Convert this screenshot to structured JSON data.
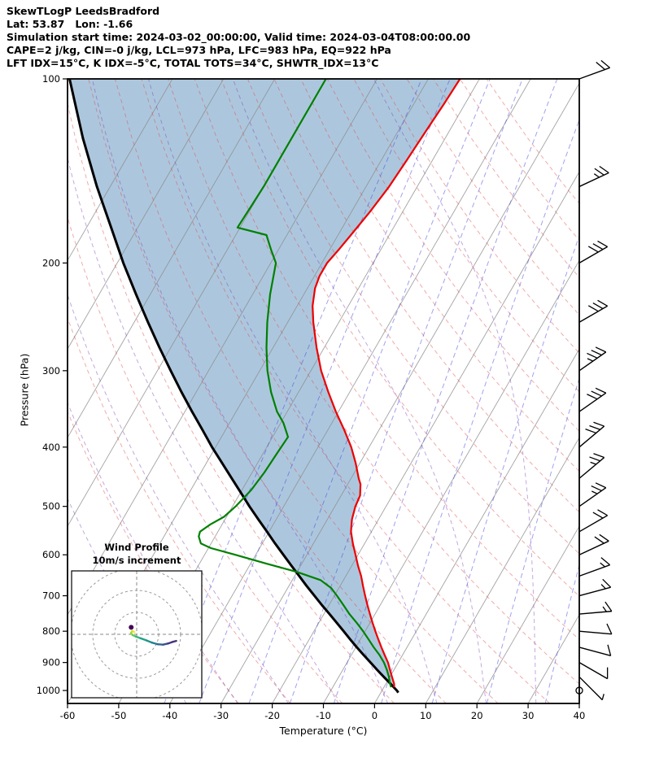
{
  "header": {
    "line1": "SkewTLogP LeedsBradford",
    "line2": "Lat: 53.87   Lon: -1.66",
    "line3": "Simulation start time: 2024-03-02_00:00:00, Valid time: 2024-03-04T08:00:00.00",
    "line4": "CAPE=2 j/kg, CIN=-0 j/kg, LCL=973 hPa, LFC=983 hPa, EQ=922 hPa",
    "line5": "LFT IDX=15°C, K IDX=-5°C, TOTAL TOTS=34°C, SHWTR_IDX=13°C"
  },
  "chart_data": {
    "type": "line",
    "variant": "skewT-logP-sounding",
    "title": "SkewTLogP LeedsBradford",
    "xlabel": "Temperature (°C)",
    "ylabel": "Pressure (hPa)",
    "xlim": [
      -60,
      40
    ],
    "p_top": 100,
    "p_bottom": 1050,
    "skew_angle_deg": 30,
    "pressure_ticks": [
      100,
      200,
      300,
      400,
      500,
      600,
      700,
      800,
      900,
      1000
    ],
    "temp_ticks": [
      -60,
      -50,
      -40,
      -30,
      -20,
      -10,
      0,
      10,
      20,
      30,
      40
    ],
    "shading": {
      "between": [
        "parcel",
        "temperature"
      ],
      "color": "rgba(70,130,180,0.45)"
    },
    "background_lines": {
      "isotherms": {
        "color": "#8c8c8c",
        "start": -110,
        "end": 40,
        "step": 10
      },
      "dry_adiabats": {
        "color": "#e04545",
        "theta_start": -30,
        "theta_end": 160,
        "step": 10
      },
      "moist_adiabats": {
        "color": "#7a3fb5",
        "t0_start": -40,
        "t0_end": 40,
        "step": 10
      },
      "mixing_ratio": {
        "color": "#4646dd",
        "values": [
          0.1,
          0.2,
          0.5,
          1,
          2,
          4,
          8,
          16,
          32
        ]
      }
    },
    "series": [
      {
        "name": "temperature",
        "color": "#ee0000",
        "points": [
          [
            988,
            2.0
          ],
          [
            975,
            1.6
          ],
          [
            950,
            0.4
          ],
          [
            925,
            -0.8
          ],
          [
            900,
            -2.0
          ],
          [
            875,
            -3.5
          ],
          [
            850,
            -5.0
          ],
          [
            825,
            -6.5
          ],
          [
            800,
            -8.0
          ],
          [
            775,
            -9.5
          ],
          [
            750,
            -11.0
          ],
          [
            725,
            -12.5
          ],
          [
            700,
            -14.0
          ],
          [
            675,
            -15.5
          ],
          [
            650,
            -17.0
          ],
          [
            625,
            -18.8
          ],
          [
            600,
            -20.5
          ],
          [
            575,
            -22.3
          ],
          [
            550,
            -24.0
          ],
          [
            525,
            -25.2
          ],
          [
            500,
            -26.0
          ],
          [
            480,
            -26.3
          ],
          [
            460,
            -27.5
          ],
          [
            450,
            -28.5
          ],
          [
            425,
            -30.8
          ],
          [
            400,
            -33.5
          ],
          [
            375,
            -36.8
          ],
          [
            350,
            -40.5
          ],
          [
            325,
            -44.2
          ],
          [
            300,
            -48.0
          ],
          [
            275,
            -51.5
          ],
          [
            250,
            -55.0
          ],
          [
            235,
            -57.0
          ],
          [
            220,
            -58.5
          ],
          [
            210,
            -59.0
          ],
          [
            200,
            -59.0
          ],
          [
            190,
            -58.2
          ],
          [
            180,
            -57.5
          ],
          [
            165,
            -56.4
          ],
          [
            150,
            -55.5
          ],
          [
            135,
            -55.0
          ],
          [
            120,
            -54.5
          ],
          [
            110,
            -54.1
          ],
          [
            100,
            -53.8
          ]
        ]
      },
      {
        "name": "dewpoint",
        "color": "#008000",
        "points": [
          [
            988,
            1.4
          ],
          [
            975,
            0.8
          ],
          [
            950,
            -0.2
          ],
          [
            925,
            -1.4
          ],
          [
            900,
            -2.8
          ],
          [
            875,
            -4.5
          ],
          [
            850,
            -6.5
          ],
          [
            825,
            -8.4
          ],
          [
            800,
            -10.4
          ],
          [
            775,
            -12.6
          ],
          [
            750,
            -15.0
          ],
          [
            725,
            -17.2
          ],
          [
            700,
            -19.5
          ],
          [
            680,
            -21.5
          ],
          [
            660,
            -24.5
          ],
          [
            640,
            -30.0
          ],
          [
            620,
            -37.0
          ],
          [
            600,
            -44.0
          ],
          [
            585,
            -49.5
          ],
          [
            575,
            -52.0
          ],
          [
            560,
            -53.2
          ],
          [
            550,
            -53.5
          ],
          [
            535,
            -52.3
          ],
          [
            520,
            -50.5
          ],
          [
            500,
            -49.4
          ],
          [
            470,
            -48.2
          ],
          [
            440,
            -47.6
          ],
          [
            410,
            -47.3
          ],
          [
            385,
            -47.0
          ],
          [
            365,
            -49.5
          ],
          [
            350,
            -52.0
          ],
          [
            325,
            -55.4
          ],
          [
            300,
            -58.5
          ],
          [
            275,
            -61.3
          ],
          [
            250,
            -64.0
          ],
          [
            225,
            -66.6
          ],
          [
            200,
            -69.0
          ],
          [
            190,
            -71.5
          ],
          [
            180,
            -74.0
          ],
          [
            175,
            -80.5
          ],
          [
            160,
            -80.2
          ],
          [
            150,
            -80.0
          ],
          [
            130,
            -80.0
          ],
          [
            100,
            -80.0
          ]
        ]
      },
      {
        "name": "parcel",
        "color": "#000000",
        "points": [
          [
            1008,
            3.4
          ],
          [
            1000,
            2.9
          ],
          [
            975,
            0.9
          ],
          [
            950,
            -1.2
          ],
          [
            925,
            -3.3
          ],
          [
            900,
            -5.4
          ],
          [
            875,
            -7.6
          ],
          [
            850,
            -9.8
          ],
          [
            825,
            -12.0
          ],
          [
            800,
            -14.2
          ],
          [
            775,
            -16.5
          ],
          [
            750,
            -18.9
          ],
          [
            725,
            -21.4
          ],
          [
            700,
            -23.9
          ],
          [
            675,
            -26.5
          ],
          [
            650,
            -29.1
          ],
          [
            625,
            -31.8
          ],
          [
            600,
            -34.6
          ],
          [
            575,
            -37.5
          ],
          [
            550,
            -40.4
          ],
          [
            525,
            -43.5
          ],
          [
            500,
            -46.7
          ],
          [
            475,
            -49.9
          ],
          [
            450,
            -53.3
          ],
          [
            425,
            -56.9
          ],
          [
            400,
            -60.7
          ],
          [
            375,
            -64.5
          ],
          [
            350,
            -68.6
          ],
          [
            325,
            -72.9
          ],
          [
            300,
            -77.4
          ],
          [
            275,
            -82.2
          ],
          [
            250,
            -87.3
          ],
          [
            225,
            -92.8
          ],
          [
            200,
            -98.8
          ],
          [
            175,
            -105.2
          ],
          [
            150,
            -112.6
          ],
          [
            125,
            -120.8
          ],
          [
            100,
            -130.1
          ]
        ]
      }
    ],
    "wind_barbs": [
      {
        "p": 100,
        "speed_kt": 20,
        "dir_deg": 70
      },
      {
        "p": 150,
        "speed_kt": 25,
        "dir_deg": 65
      },
      {
        "p": 200,
        "speed_kt": 30,
        "dir_deg": 60
      },
      {
        "p": 250,
        "speed_kt": 30,
        "dir_deg": 60
      },
      {
        "p": 300,
        "speed_kt": 35,
        "dir_deg": 55
      },
      {
        "p": 350,
        "speed_kt": 30,
        "dir_deg": 55
      },
      {
        "p": 400,
        "speed_kt": 30,
        "dir_deg": 50
      },
      {
        "p": 450,
        "speed_kt": 25,
        "dir_deg": 50
      },
      {
        "p": 500,
        "speed_kt": 25,
        "dir_deg": 55
      },
      {
        "p": 550,
        "speed_kt": 20,
        "dir_deg": 60
      },
      {
        "p": 600,
        "speed_kt": 20,
        "dir_deg": 65
      },
      {
        "p": 650,
        "speed_kt": 15,
        "dir_deg": 70
      },
      {
        "p": 700,
        "speed_kt": 15,
        "dir_deg": 75
      },
      {
        "p": 750,
        "speed_kt": 15,
        "dir_deg": 85
      },
      {
        "p": 800,
        "speed_kt": 10,
        "dir_deg": 95
      },
      {
        "p": 850,
        "speed_kt": 10,
        "dir_deg": 105
      },
      {
        "p": 900,
        "speed_kt": 8,
        "dir_deg": 120
      },
      {
        "p": 950,
        "speed_kt": 5,
        "dir_deg": 135
      },
      {
        "p": 1000,
        "speed_kt": 1,
        "dir_deg": 0
      }
    ],
    "hodograph": {
      "title_line1": "Wind Profile",
      "title_line2": "10m/s increment",
      "rings_ms": [
        10,
        20,
        30
      ],
      "trace_uv": [
        [
          -1,
          1
        ],
        [
          -2,
          1.5
        ],
        [
          -2.6,
          0.6
        ],
        [
          -1.8,
          -0.4
        ],
        [
          -0.4,
          -1
        ],
        [
          1.8,
          -1.8
        ],
        [
          4.5,
          -2.8
        ],
        [
          7,
          -3.8
        ],
        [
          9.5,
          -4.5
        ],
        [
          12,
          -4.7
        ],
        [
          14.2,
          -4.2
        ],
        [
          16.2,
          -3.5
        ],
        [
          18,
          -3
        ]
      ],
      "trace_colors": [
        "#fde725",
        "#c8e020",
        "#90d743",
        "#5ec962",
        "#35b779",
        "#20a386",
        "#21918c",
        "#287c8e",
        "#31688e",
        "#3b528b",
        "#443983",
        "#46327e"
      ],
      "marker_uv": [
        -2.5,
        3.2
      ],
      "marker_color": "#440154"
    }
  }
}
